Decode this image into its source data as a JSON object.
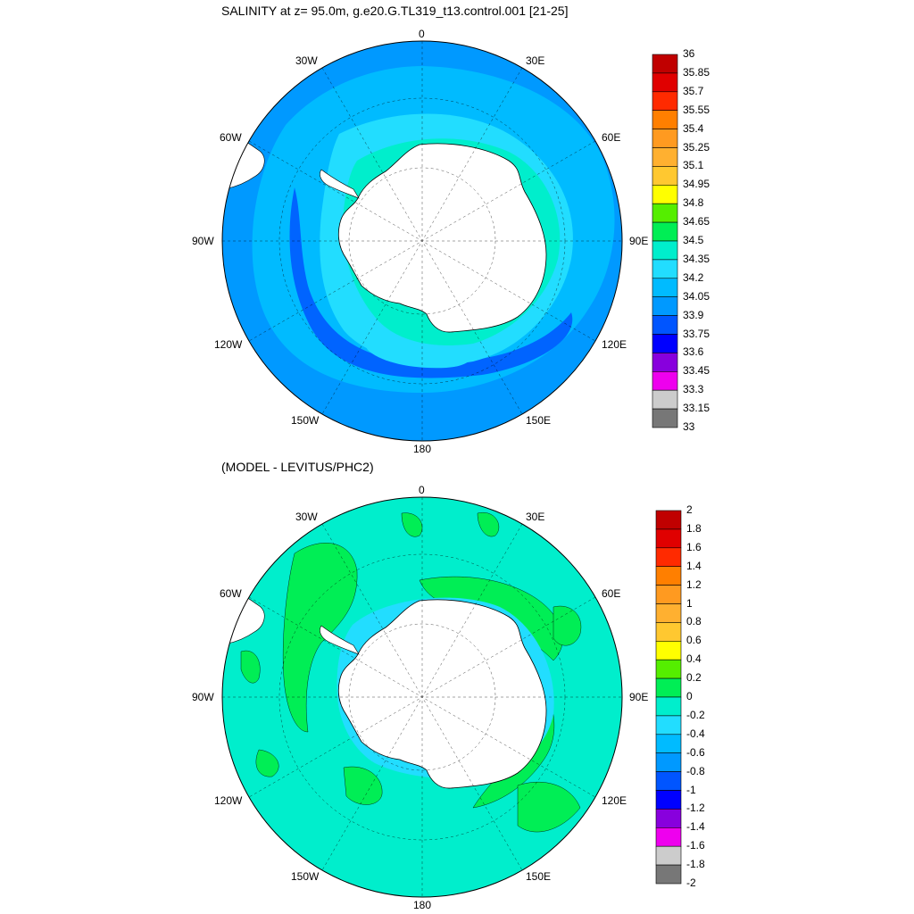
{
  "top_panel": {
    "title": "SALINITY at z=  95.0m, g.e20.G.TL319_t13.control.001 [21-25]",
    "lon_labels": {
      "n": "0",
      "nne": "30E",
      "ene": "60E",
      "e": "90E",
      "ese": "120E",
      "sse": "150E",
      "s": "180",
      "ssw": "150W",
      "wsw": "120W",
      "w": "90W",
      "wnw": "60W",
      "nnw": "30W"
    },
    "colorbar": {
      "labels": [
        "36",
        "35.85",
        "35.7",
        "35.55",
        "35.4",
        "35.25",
        "35.1",
        "34.95",
        "34.8",
        "34.65",
        "34.5",
        "34.35",
        "34.2",
        "34.05",
        "33.9",
        "33.75",
        "33.6",
        "33.45",
        "33.3",
        "33.15",
        "33"
      ],
      "colors": [
        "#c00000",
        "#e00000",
        "#ff2a00",
        "#ff7f00",
        "#ff9a20",
        "#ffb030",
        "#ffc830",
        "#ffff00",
        "#55ee00",
        "#00ee55",
        "#00eecc",
        "#22ddff",
        "#00bbff",
        "#0099ff",
        "#0055ff",
        "#0000ff",
        "#8800dd",
        "#ee00ee",
        "#cccccc",
        "#777777"
      ]
    }
  },
  "bottom_panel": {
    "title": "(MODEL - LEVITUS/PHC2)",
    "lon_labels": {
      "n": "0",
      "nne": "30E",
      "ene": "60E",
      "e": "90E",
      "ese": "120E",
      "sse": "150E",
      "s": "180",
      "ssw": "150W",
      "wsw": "120W",
      "w": "90W",
      "wnw": "60W",
      "nnw": "30W"
    },
    "colorbar": {
      "labels": [
        "2",
        "1.8",
        "1.6",
        "1.4",
        "1.2",
        "1",
        "0.8",
        "0.6",
        "0.4",
        "0.2",
        "0",
        "-0.2",
        "-0.4",
        "-0.6",
        "-0.8",
        "-1",
        "-1.2",
        "-1.4",
        "-1.6",
        "-1.8",
        "-2"
      ],
      "colors": [
        "#c00000",
        "#e00000",
        "#ff2a00",
        "#ff7f00",
        "#ff9a20",
        "#ffb030",
        "#ffc830",
        "#ffff00",
        "#55ee00",
        "#00ee55",
        "#00eecc",
        "#22ddff",
        "#00bbff",
        "#0099ff",
        "#0055ff",
        "#0000ff",
        "#8800dd",
        "#ee00ee",
        "#cccccc",
        "#777777"
      ]
    }
  },
  "colors": {
    "ocean_top_base": "#00bbff",
    "ocean_top_outer": "#0099ff",
    "ocean_top_deep": "#0055ff",
    "ocean_top_shelf": "#22ddff",
    "ocean_top_coast": "#00eecc",
    "ocean_bottom_base": "#00eecc",
    "ocean_bottom_pos": "#00ee55",
    "ocean_bottom_shelf": "#22ddff",
    "land": "#ffffff"
  }
}
